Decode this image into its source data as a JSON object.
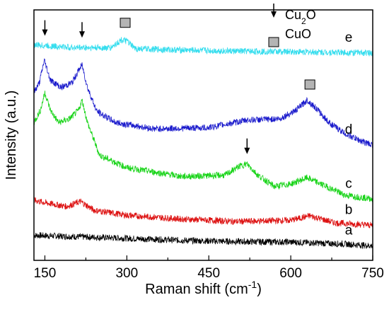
{
  "chart_data": {
    "type": "line",
    "xlabel": "Raman shift",
    "xlabel_unit_pre": "(cm",
    "xlabel_unit_sup": "-1",
    "xlabel_unit_post": ")",
    "ylabel": "Intensity (a.u.)",
    "xlim": [
      130,
      750
    ],
    "ylim": [
      0,
      100
    ],
    "x_ticks": [
      150,
      300,
      450,
      600,
      750
    ],
    "y_ticks_labeled": false,
    "grid": false,
    "legend": [
      {
        "label_main": "Cu",
        "label_sub": "2",
        "label_tail": "O",
        "marker": "arrow"
      },
      {
        "label_main": "CuO",
        "label_sub": "",
        "label_tail": "",
        "marker": "square"
      }
    ],
    "series": [
      {
        "name": "a",
        "color": "#000000",
        "baseline": 8,
        "points": [
          [
            130,
            10.0
          ],
          [
            200,
            9.5
          ],
          [
            300,
            8.8
          ],
          [
            400,
            8.0
          ],
          [
            500,
            7.5
          ],
          [
            600,
            7.3
          ],
          [
            700,
            6.5
          ],
          [
            750,
            5.8
          ]
        ]
      },
      {
        "name": "b",
        "color": "#dd1111",
        "baseline": 22,
        "points": [
          [
            130,
            24.0
          ],
          [
            150,
            23.0
          ],
          [
            190,
            21.5
          ],
          [
            215,
            23.5
          ],
          [
            240,
            20.0
          ],
          [
            300,
            18.0
          ],
          [
            400,
            16.5
          ],
          [
            500,
            15.5
          ],
          [
            600,
            16.0
          ],
          [
            635,
            17.8
          ],
          [
            680,
            15.0
          ],
          [
            750,
            14.0
          ]
        ]
      },
      {
        "name": "c",
        "color": "#19d419",
        "baseline": 45,
        "points": [
          [
            130,
            55.0
          ],
          [
            142,
            60.0
          ],
          [
            150,
            67.0
          ],
          [
            160,
            60.0
          ],
          [
            175,
            55.0
          ],
          [
            195,
            56.5
          ],
          [
            212,
            60.0
          ],
          [
            218,
            64.0
          ],
          [
            228,
            55.0
          ],
          [
            250,
            42.0
          ],
          [
            300,
            37.0
          ],
          [
            400,
            33.5
          ],
          [
            480,
            34.0
          ],
          [
            505,
            37.5
          ],
          [
            520,
            38.5
          ],
          [
            540,
            34.0
          ],
          [
            570,
            29.5
          ],
          [
            600,
            30.5
          ],
          [
            630,
            33.0
          ],
          [
            650,
            31.0
          ],
          [
            700,
            26.0
          ],
          [
            750,
            24.5
          ]
        ]
      },
      {
        "name": "d",
        "color": "#1a1acc",
        "baseline": 60,
        "points": [
          [
            130,
            67.0
          ],
          [
            140,
            71.0
          ],
          [
            149,
            80.0
          ],
          [
            160,
            72.0
          ],
          [
            180,
            69.0
          ],
          [
            200,
            71.0
          ],
          [
            212,
            76.0
          ],
          [
            218,
            78.0
          ],
          [
            228,
            69.0
          ],
          [
            245,
            59.5
          ],
          [
            280,
            55.0
          ],
          [
            350,
            52.5
          ],
          [
            450,
            53.0
          ],
          [
            520,
            56.0
          ],
          [
            580,
            56.5
          ],
          [
            610,
            60.0
          ],
          [
            630,
            64.0
          ],
          [
            645,
            61.0
          ],
          [
            670,
            55.0
          ],
          [
            700,
            50.5
          ],
          [
            730,
            47.5
          ],
          [
            750,
            46.0
          ]
        ]
      },
      {
        "name": "e",
        "color": "#33ddee",
        "baseline": 83,
        "points": [
          [
            130,
            86.0
          ],
          [
            200,
            85.0
          ],
          [
            270,
            84.8
          ],
          [
            290,
            88.0
          ],
          [
            300,
            87.5
          ],
          [
            315,
            84.5
          ],
          [
            400,
            84.0
          ],
          [
            500,
            83.5
          ],
          [
            600,
            83.3
          ],
          [
            700,
            83.0
          ],
          [
            750,
            82.8
          ]
        ]
      }
    ],
    "annotations": [
      {
        "type": "arrow",
        "x": 150
      },
      {
        "type": "arrow",
        "x": 218
      },
      {
        "type": "square",
        "x": 297
      },
      {
        "type": "arrow",
        "x": 520
      },
      {
        "type": "square",
        "x": 635
      }
    ]
  }
}
